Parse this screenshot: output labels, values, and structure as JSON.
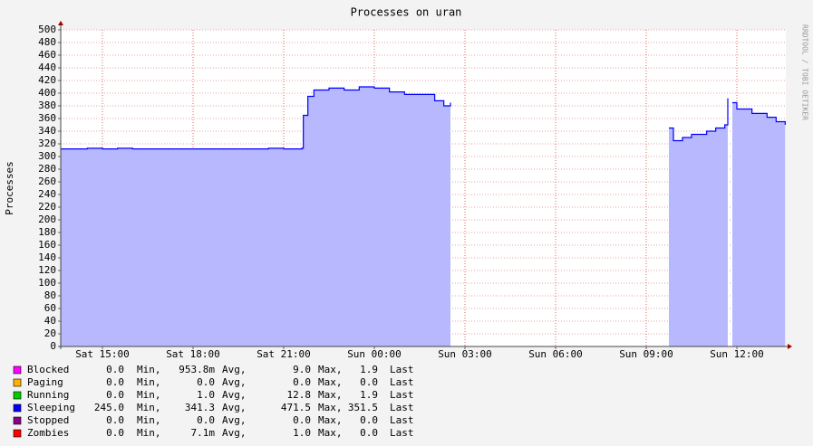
{
  "chart_data": {
    "type": "area",
    "title": "Processes on uran",
    "y_label": "Processes",
    "watermark": "RRDTOOL / TOBI OETIKER",
    "ylim": [
      0,
      500
    ],
    "yticks": [
      0,
      20,
      40,
      60,
      80,
      100,
      120,
      140,
      160,
      180,
      200,
      220,
      240,
      260,
      280,
      300,
      320,
      340,
      360,
      380,
      400,
      420,
      440,
      460,
      480,
      500
    ],
    "xlim": [
      13.62,
      37.62
    ],
    "xticks": [
      {
        "value": 15,
        "label": "Sat 15:00"
      },
      {
        "value": 18,
        "label": "Sat 18:00"
      },
      {
        "value": 21,
        "label": "Sat 21:00"
      },
      {
        "value": 24,
        "label": "Sun 00:00"
      },
      {
        "value": 27,
        "label": "Sun 03:00"
      },
      {
        "value": 30,
        "label": "Sun 06:00"
      },
      {
        "value": 33,
        "label": "Sun 09:00"
      },
      {
        "value": 36,
        "label": "Sun 12:00"
      }
    ],
    "grid": true,
    "x": [
      13.62,
      14,
      14.5,
      15,
      15.5,
      16,
      16.5,
      17,
      17.5,
      18,
      18.5,
      19,
      19.5,
      20,
      20.5,
      21,
      21.5,
      21.6,
      21.65,
      21.8,
      22,
      22.5,
      23,
      23.5,
      24,
      24.5,
      25,
      25.5,
      26,
      26.3,
      26.52,
      27,
      33.75,
      33.9,
      34.2,
      34.5,
      35,
      35.3,
      35.6,
      35.7,
      35.78,
      35.85,
      36,
      36.5,
      37,
      37.3,
      37.6
    ],
    "stat_labels": [
      "Min,",
      "Avg,",
      "Max,",
      "Last"
    ],
    "series": [
      {
        "name": "Blocked",
        "color": "#ff00ff",
        "stats": [
          "0.0",
          "953.8m",
          "9.0",
          "1.9"
        ]
      },
      {
        "name": "Paging",
        "color": "#ffb000",
        "stats": [
          "0.0",
          "0.0",
          "0.0",
          "0.0"
        ]
      },
      {
        "name": "Running",
        "color": "#00cc00",
        "stats": [
          "0.0",
          "1.0",
          "12.8",
          "1.9"
        ]
      },
      {
        "name": "Sleeping",
        "color": "#0000ff",
        "fill": "#b8b8ff",
        "stats": [
          "245.0",
          "341.3",
          "471.5",
          "351.5"
        ],
        "values": [
          312,
          312,
          313,
          312,
          313,
          312,
          312,
          312,
          312,
          312,
          312,
          312,
          312,
          312,
          313,
          312,
          312,
          313,
          365,
          395,
          405,
          408,
          405,
          410,
          408,
          402,
          398,
          398,
          388,
          380,
          385,
          null,
          345,
          325,
          330,
          335,
          340,
          345,
          350,
          392,
          null,
          385,
          375,
          368,
          362,
          355,
          350
        ]
      },
      {
        "name": "Stopped",
        "color": "#8b008b",
        "stats": [
          "0.0",
          "0.0",
          "0.0",
          "0.0"
        ]
      },
      {
        "name": "Zombies",
        "color": "#ff0000",
        "stats": [
          "0.0",
          "7.1m",
          "1.0",
          "0.0"
        ]
      }
    ]
  }
}
